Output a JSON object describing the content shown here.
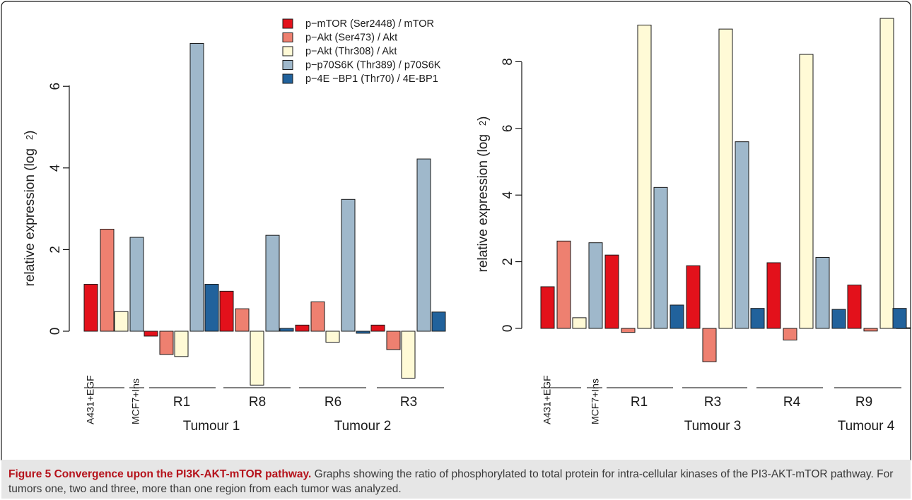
{
  "chart_data": [
    {
      "type": "bar",
      "ylabel": "relative expression (log",
      "ylabel_subscript": "2",
      "ylabel_close": ")",
      "ylim": [
        -1.45,
        7.1
      ],
      "yticks": [
        0,
        2,
        4,
        6
      ],
      "legend": "top-center",
      "grid": false,
      "series": [
        {
          "name": "p−mTOR (Ser2448) / mTOR",
          "color": "#e3111b"
        },
        {
          "name": "p−Akt (Ser473) / Akt",
          "color": "#ee8070"
        },
        {
          "name": "p−Akt (Thr308) / Akt",
          "color": "#fffad6"
        },
        {
          "name": "p−p70S6K (Thr389) / p70S6K",
          "color": "#9fb8cb"
        },
        {
          "name": "p−4E −BP1 (Thr70) / 4E-BP1",
          "color": "#21629c"
        }
      ],
      "groups": [
        {
          "label": "A431+EGF",
          "values": [
            1.15,
            2.5,
            0.48,
            null,
            null
          ]
        },
        {
          "label": "MCF7+Ins",
          "values": [
            null,
            null,
            null,
            2.3,
            null
          ]
        },
        {
          "label": "R1",
          "values": [
            -0.12,
            -0.57,
            -0.62,
            7.05,
            1.15
          ]
        },
        {
          "label": "R8",
          "values": [
            0.98,
            0.55,
            -1.32,
            2.35,
            0.07
          ]
        },
        {
          "label": "R6",
          "values": [
            0.15,
            0.72,
            -0.27,
            3.23,
            -0.05
          ]
        },
        {
          "label": "R3",
          "values": [
            0.15,
            -0.45,
            -1.15,
            4.22,
            0.47
          ]
        }
      ],
      "tumour_labels": [
        "Tumour 1",
        "Tumour 2"
      ]
    },
    {
      "type": "bar",
      "ylabel": "relative expression (log",
      "ylabel_subscript": "2",
      "ylabel_close": ")",
      "ylim": [
        -1.2,
        9.4
      ],
      "yticks": [
        0,
        2,
        4,
        6,
        8
      ],
      "grid": false,
      "series": [
        {
          "name": "p−mTOR (Ser2448) / mTOR",
          "color": "#e3111b"
        },
        {
          "name": "p−Akt (Ser473) / Akt",
          "color": "#ee8070"
        },
        {
          "name": "p−Akt (Thr308) / Akt",
          "color": "#fffad6"
        },
        {
          "name": "p−p70S6K (Thr389) / p70S6K",
          "color": "#9fb8cb"
        },
        {
          "name": "p−4E −BP1 (Thr70) / 4E-BP1",
          "color": "#21629c"
        }
      ],
      "groups": [
        {
          "label": "A431+EGF",
          "values": [
            1.25,
            2.62,
            0.32,
            null,
            null
          ]
        },
        {
          "label": "MCF7+Ins",
          "values": [
            null,
            null,
            null,
            2.57,
            null
          ]
        },
        {
          "label": "R1",
          "values": [
            2.2,
            -0.12,
            9.1,
            4.23,
            0.7
          ]
        },
        {
          "label": "R3",
          "values": [
            1.88,
            -1.0,
            8.98,
            5.6,
            0.6
          ]
        },
        {
          "label": "R4",
          "values": [
            1.97,
            -0.35,
            8.22,
            2.13,
            0.57
          ]
        },
        {
          "label": "R9",
          "values": [
            1.3,
            -0.08,
            9.3,
            0.02,
            0.6
          ]
        }
      ],
      "tumour_labels": [
        "Tumour 3",
        "Tumour 4"
      ]
    }
  ],
  "caption": {
    "title": "Figure 5 Convergence upon the PI3K-AKT-mTOR pathway.",
    "text": " Graphs showing the ratio of phosphorylated to total protein for intra-cellular kinases of the PI3-AKT-mTOR pathway. For tumors one, two and three, more than one region from each tumor was analyzed."
  }
}
